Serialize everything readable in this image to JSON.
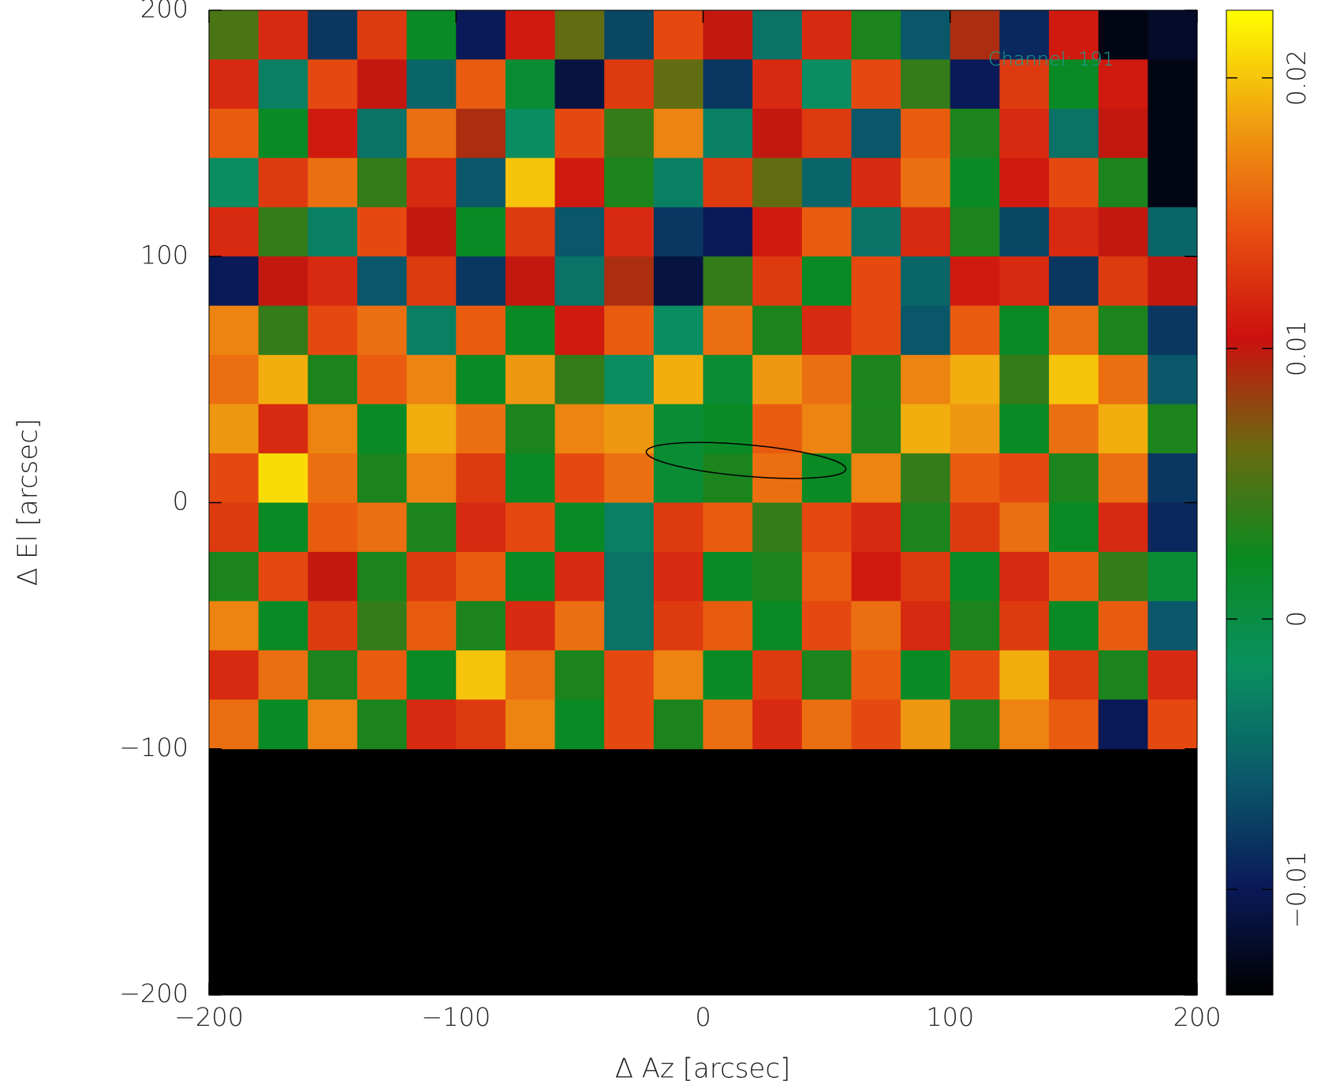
{
  "chart_data": {
    "type": "heatmap",
    "xlabel": "Δ Az [arcsec]",
    "ylabel": "Δ El [arcsec]",
    "annotation": "Channel: 191",
    "xlim": [
      -200,
      200
    ],
    "ylim": [
      -200,
      200
    ],
    "xticks": [
      {
        "value": -200,
        "label": "−200"
      },
      {
        "value": -100,
        "label": "−100"
      },
      0,
      100,
      200
    ],
    "yticks": [
      {
        "value": -200,
        "label": "−200"
      },
      {
        "value": -100,
        "label": "−100"
      },
      0,
      100,
      200
    ],
    "clim": [
      -0.0139,
      0.0225
    ],
    "cticks": [
      {
        "value": -0.01,
        "label": "−0.01"
      },
      0,
      0.01,
      0.02
    ],
    "colormap": [
      "#000000",
      "#0a1a5a",
      "#0a5a6a",
      "#0a9060",
      "#0a8a20",
      "#6a6a10",
      "#cc1010",
      "#e85010",
      "#f0a010",
      "#ffff00"
    ],
    "z": [
      [
        0.005,
        0.012,
        -0.008,
        0.013,
        0.002,
        -0.01,
        0.011,
        0.006,
        -0.007,
        0.014,
        0.01,
        -0.004,
        0.012,
        0.003,
        -0.006,
        0.009,
        -0.009,
        0.011,
        -0.013,
        -0.012
      ],
      [
        0.012,
        -0.003,
        0.014,
        0.01,
        -0.005,
        0.015,
        0.001,
        -0.011,
        0.013,
        0.006,
        -0.008,
        0.012,
        -0.002,
        0.014,
        0.004,
        -0.01,
        0.013,
        0.002,
        0.011,
        -0.013
      ],
      [
        0.015,
        0.002,
        0.011,
        -0.004,
        0.016,
        0.009,
        -0.002,
        0.014,
        0.004,
        0.017,
        -0.003,
        0.01,
        0.013,
        -0.006,
        0.015,
        0.003,
        0.012,
        -0.004,
        0.01,
        -0.013
      ],
      [
        -0.002,
        0.013,
        0.016,
        0.004,
        0.012,
        -0.006,
        0.02,
        0.011,
        0.003,
        -0.003,
        0.013,
        0.006,
        -0.005,
        0.012,
        0.016,
        0.002,
        0.011,
        0.014,
        0.003,
        -0.013
      ],
      [
        0.012,
        0.004,
        -0.003,
        0.014,
        0.01,
        0.002,
        0.013,
        -0.006,
        0.012,
        -0.008,
        -0.01,
        0.011,
        0.015,
        -0.004,
        0.012,
        0.003,
        -0.007,
        0.012,
        0.01,
        -0.005
      ],
      [
        -0.01,
        0.01,
        0.012,
        -0.006,
        0.013,
        -0.008,
        0.01,
        -0.004,
        0.009,
        -0.011,
        0.004,
        0.013,
        0.002,
        0.014,
        -0.005,
        0.011,
        0.012,
        -0.008,
        0.013,
        0.01
      ],
      [
        0.017,
        0.004,
        0.014,
        0.016,
        -0.003,
        0.015,
        0.002,
        0.011,
        0.015,
        -0.002,
        0.016,
        0.003,
        0.012,
        0.014,
        -0.006,
        0.015,
        0.002,
        0.016,
        0.003,
        -0.008
      ],
      [
        0.016,
        0.019,
        0.003,
        0.015,
        0.017,
        0.002,
        0.018,
        0.004,
        -0.002,
        0.019,
        0.001,
        0.018,
        0.016,
        0.003,
        0.017,
        0.019,
        0.004,
        0.02,
        0.016,
        -0.006
      ],
      [
        0.018,
        0.012,
        0.017,
        0.002,
        0.019,
        0.016,
        0.003,
        0.017,
        0.018,
        0.001,
        0.002,
        0.015,
        0.017,
        0.003,
        0.019,
        0.018,
        0.002,
        0.016,
        0.019,
        0.003
      ],
      [
        0.014,
        0.021,
        0.016,
        0.003,
        0.017,
        0.013,
        0.002,
        0.014,
        0.016,
        0.001,
        0.003,
        0.016,
        0.002,
        0.017,
        0.004,
        0.015,
        0.014,
        0.003,
        0.016,
        -0.008
      ],
      [
        0.013,
        0.002,
        0.015,
        0.016,
        0.003,
        0.012,
        0.014,
        0.002,
        -0.003,
        0.013,
        0.015,
        0.004,
        0.014,
        0.012,
        0.003,
        0.013,
        0.016,
        0.002,
        0.012,
        -0.009
      ],
      [
        0.003,
        0.014,
        0.01,
        0.003,
        0.013,
        0.015,
        0.002,
        0.012,
        -0.004,
        0.012,
        0.002,
        0.003,
        0.015,
        0.011,
        0.013,
        0.002,
        0.012,
        0.015,
        0.004,
        0.001
      ],
      [
        0.017,
        0.002,
        0.013,
        0.004,
        0.015,
        0.003,
        0.012,
        0.016,
        -0.004,
        0.013,
        0.015,
        0.002,
        0.014,
        0.016,
        0.012,
        0.003,
        0.013,
        0.002,
        0.015,
        -0.006
      ],
      [
        0.012,
        0.016,
        0.003,
        0.015,
        0.002,
        0.02,
        0.016,
        0.003,
        0.014,
        0.017,
        0.002,
        0.013,
        0.003,
        0.015,
        0.002,
        0.014,
        0.019,
        0.013,
        0.003,
        0.012
      ],
      [
        0.016,
        0.002,
        0.017,
        0.003,
        0.012,
        0.013,
        0.017,
        0.002,
        0.014,
        0.003,
        0.016,
        0.012,
        0.016,
        0.014,
        0.018,
        0.003,
        0.017,
        0.015,
        -0.01,
        0.014
      ],
      [
        null,
        null,
        null,
        null,
        null,
        null,
        null,
        null,
        null,
        null,
        null,
        null,
        null,
        null,
        null,
        null,
        null,
        null,
        null,
        null
      ],
      [
        null,
        null,
        null,
        null,
        null,
        null,
        null,
        null,
        null,
        null,
        null,
        null,
        null,
        null,
        null,
        null,
        null,
        null,
        null,
        null
      ],
      [
        null,
        null,
        null,
        null,
        null,
        null,
        null,
        null,
        null,
        null,
        null,
        null,
        null,
        null,
        null,
        null,
        null,
        null,
        null,
        null
      ],
      [
        null,
        null,
        null,
        null,
        null,
        null,
        null,
        null,
        null,
        null,
        null,
        null,
        null,
        null,
        null,
        null,
        null,
        null,
        null,
        null
      ],
      [
        null,
        null,
        null,
        null,
        null,
        null,
        null,
        null,
        null,
        null,
        null,
        null,
        null,
        null,
        null,
        null,
        null,
        null,
        null,
        null
      ]
    ]
  }
}
